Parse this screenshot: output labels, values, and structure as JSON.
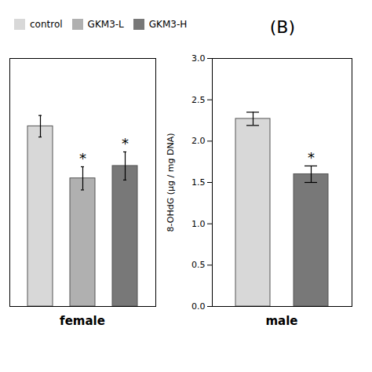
{
  "chart_data": [
    {
      "type": "bar",
      "xlabel": "female",
      "categories": [
        "control",
        "GKM3-L",
        "GKM3-H"
      ],
      "values": [
        2.18,
        1.55,
        1.7
      ],
      "errors": [
        0.13,
        0.14,
        0.17
      ],
      "colors": [
        "#d8d8d8",
        "#b0b0b0",
        "#787878"
      ],
      "ylim": [
        0.0,
        3.0
      ],
      "tick_labels": false,
      "legend": "top",
      "annotations": [
        {
          "category": "GKM3-L",
          "text": "*"
        },
        {
          "category": "GKM3-H",
          "text": "*"
        }
      ]
    },
    {
      "type": "bar",
      "title": "(B)",
      "xlabel": "male",
      "ylabel": "8-OHdG (μg / mg DNA)",
      "categories": [
        "control",
        "GKM3-H"
      ],
      "values": [
        2.27,
        1.6
      ],
      "errors": [
        0.08,
        0.1
      ],
      "colors": [
        "#d8d8d8",
        "#787878"
      ],
      "ylim": [
        0.0,
        3.0
      ],
      "yticks": [
        {
          "value": 0,
          "label": "0.0"
        },
        0.5,
        {
          "value": 1,
          "label": "1.0"
        },
        1.5,
        {
          "value": 2,
          "label": "2.0"
        },
        2.5,
        {
          "value": 3,
          "label": "3.0"
        }
      ],
      "tick_labels": "y",
      "annotations": [
        {
          "category": "GKM3-H",
          "text": "*"
        }
      ]
    }
  ]
}
